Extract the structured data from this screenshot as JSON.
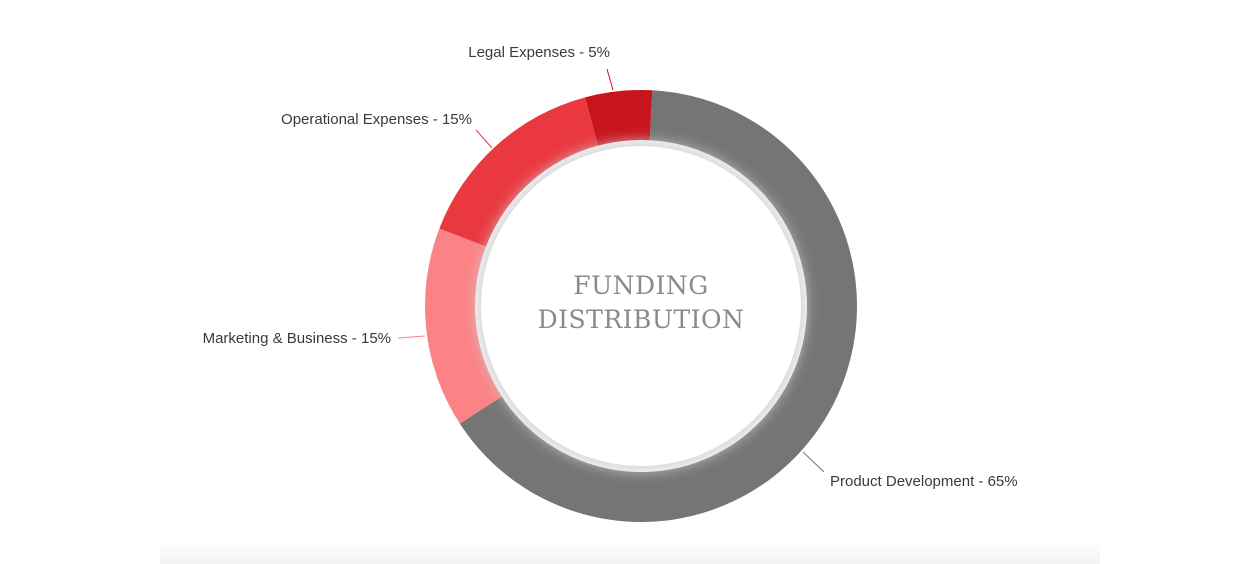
{
  "chart_data": {
    "type": "pie",
    "variant": "donut",
    "title_lines": [
      "FUNDING",
      "DISTRIBUTION"
    ],
    "slices": [
      {
        "name": "Product Development",
        "value": 65,
        "label": "Product Development - 65%",
        "color": "#757575"
      },
      {
        "name": "Marketing & Business",
        "value": 15,
        "label": "Marketing & Business - 15%",
        "color": "#fb8285"
      },
      {
        "name": "Operational Expenses",
        "value": 15,
        "label": "Operational Expenses - 15%",
        "color": "#ea383f"
      },
      {
        "name": "Legal Expenses",
        "value": 5,
        "label": "Legal Expenses - 5%",
        "color": "#c8141d"
      }
    ],
    "legend": "none"
  }
}
